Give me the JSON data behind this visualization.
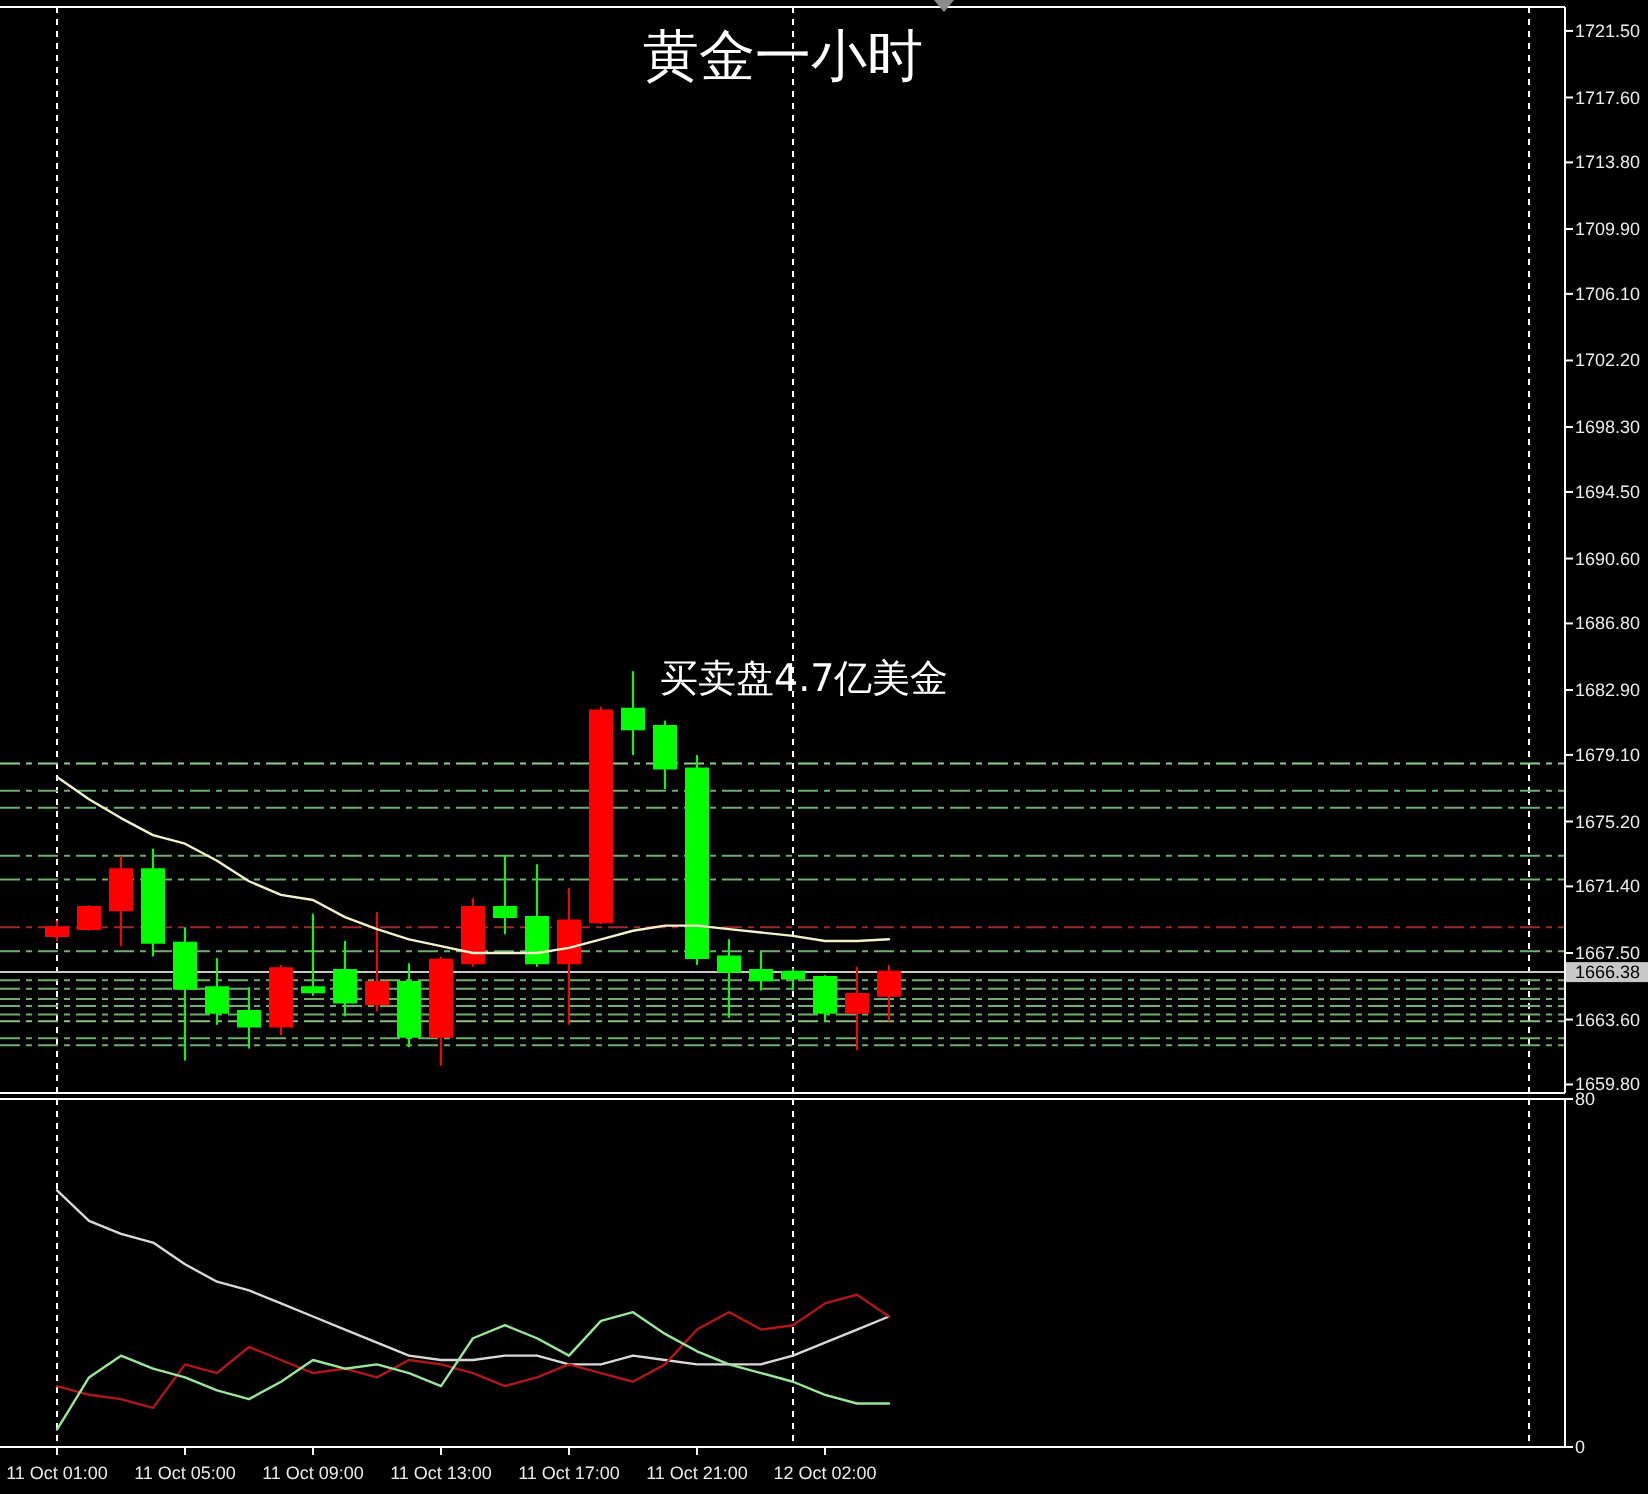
{
  "chart_data": [
    {
      "type": "candlestick",
      "title": "黄金一小时",
      "annotations": [
        "买卖盘4.7亿美金"
      ],
      "categories": [
        null,
        null,
        null,
        null,
        null,
        null,
        null,
        null,
        null,
        null,
        null,
        null,
        null,
        null,
        null,
        null,
        null,
        null,
        null,
        null,
        null,
        null,
        null,
        null,
        null,
        null,
        null
      ],
      "ohlc": [
        [
          1668.5,
          1669.4,
          1668.2,
          1669.0
        ],
        [
          1668.9,
          1670.3,
          1668.8,
          1670.2
        ],
        [
          1670.0,
          1673.2,
          1667.9,
          1672.4
        ],
        [
          1672.4,
          1673.6,
          1667.3,
          1668.1
        ],
        [
          1668.1,
          1669.0,
          1661.2,
          1665.4
        ],
        [
          1665.5,
          1667.2,
          1663.3,
          1664.0
        ],
        [
          1664.1,
          1665.5,
          1661.9,
          1663.2
        ],
        [
          1663.2,
          1666.8,
          1662.7,
          1666.6
        ],
        [
          1665.5,
          1669.8,
          1665.0,
          1665.2
        ],
        [
          1666.5,
          1668.2,
          1663.8,
          1664.6
        ],
        [
          1664.5,
          1669.9,
          1664.1,
          1665.8
        ],
        [
          1665.8,
          1666.9,
          1662.0,
          1662.6
        ],
        [
          1662.6,
          1667.3,
          1660.9,
          1667.1
        ],
        [
          1666.9,
          1670.7,
          1666.7,
          1670.2
        ],
        [
          1670.2,
          1673.2,
          1668.6,
          1669.6
        ],
        [
          1669.6,
          1672.7,
          1666.7,
          1666.9
        ],
        [
          1666.9,
          1671.3,
          1663.3,
          1669.4
        ],
        [
          1669.3,
          1681.9,
          1669.2,
          1681.7
        ],
        [
          1681.8,
          1684.0,
          1679.1,
          1680.6
        ],
        [
          1680.8,
          1681.1,
          1677.1,
          1678.3
        ],
        [
          1678.3,
          1679.1,
          1666.8,
          1667.2
        ],
        [
          1667.3,
          1668.3,
          1663.7,
          1666.4
        ],
        [
          1666.5,
          1667.6,
          1665.3,
          1665.9
        ],
        [
          1666.4,
          1666.6,
          1665.3,
          1666.0
        ],
        [
          1666.1,
          1666.2,
          1663.5,
          1664.0
        ],
        [
          1664.0,
          1666.7,
          1661.8,
          1665.1
        ],
        [
          1665.0,
          1666.8,
          1663.5,
          1666.4
        ]
      ],
      "colors": [
        "#ff0000",
        "#ff0000",
        "#ff0000",
        "#00ff00",
        "#00ff00",
        "#00ff00",
        "#00ff00",
        "#ff0000",
        "#00ff00",
        "#00ff00",
        "#ff0000",
        "#00ff00",
        "#ff0000",
        "#ff0000",
        "#00ff00",
        "#00ff00",
        "#ff0000",
        "#ff0000",
        "#00ff00",
        "#00ff00",
        "#00ff00",
        "#00ff00",
        "#00ff00",
        "#00ff00",
        "#00ff00",
        "#ff0000",
        "#ff0000"
      ],
      "series": [
        {
          "type": "line",
          "color": "#f2f2c8",
          "values": [
            1677.8,
            1676.5,
            1675.4,
            1674.4,
            1673.9,
            1672.9,
            1671.7,
            1670.9,
            1670.6,
            1669.6,
            1668.9,
            1668.3,
            1667.9,
            1667.5,
            1667.5,
            1667.5,
            1667.8,
            1668.3,
            1668.8,
            1669.1,
            1669.1,
            1668.9,
            1668.7,
            1668.5,
            1668.2,
            1668.2,
            1668.3
          ]
        }
      ],
      "ref_lines": [
        {
          "axis": "y",
          "value": 1678.6,
          "color": "#8fd08f",
          "line_style": "dashed"
        },
        {
          "axis": "y",
          "value": 1677.0,
          "color": "#6fae6f",
          "line_style": "dashed"
        },
        {
          "axis": "y",
          "value": 1676.0,
          "color": "#6fae6f",
          "line_style": "dashed"
        },
        {
          "axis": "y",
          "value": 1673.2,
          "color": "#6fae6f",
          "line_style": "dashed"
        },
        {
          "axis": "y",
          "value": 1671.8,
          "color": "#6fae6f",
          "line_style": "dashed"
        },
        {
          "axis": "y",
          "value": 1669.0,
          "color": "#a02828",
          "line_style": "dashed"
        },
        {
          "axis": "y",
          "value": 1667.6,
          "color": "#6fae6f",
          "line_style": "dashed"
        },
        {
          "axis": "y",
          "value": 1666.38,
          "label": "1666.38",
          "color": "#c8c8c8",
          "line_style": "solid"
        },
        {
          "axis": "y",
          "value": 1665.9,
          "color": "#6fae6f",
          "line_style": "dashed"
        },
        {
          "axis": "y",
          "value": 1665.4,
          "color": "#6fae6f",
          "line_style": "dashed"
        },
        {
          "axis": "y",
          "value": 1664.8,
          "color": "#6fae6f",
          "line_style": "dashed"
        },
        {
          "axis": "y",
          "value": 1664.4,
          "color": "#6fae6f",
          "line_style": "dashed"
        },
        {
          "axis": "y",
          "value": 1663.9,
          "color": "#6fae6f",
          "line_style": "dashed"
        },
        {
          "axis": "y",
          "value": 1663.5,
          "color": "#8fc07f",
          "line_style": "dashed"
        },
        {
          "axis": "y",
          "value": 1662.5,
          "color": "#6fae6f",
          "line_style": "dashed"
        },
        {
          "axis": "y",
          "value": 1662.1,
          "color": "#6fae6f",
          "line_style": "dashed"
        }
      ],
      "ylim": [
        1659.3,
        1722.9
      ],
      "yticks": [
        {
          "value": 1721.5,
          "label": "1721.50"
        },
        {
          "value": 1717.6,
          "label": "1717.60"
        },
        {
          "value": 1713.8,
          "label": "1713.80"
        },
        {
          "value": 1709.9,
          "label": "1709.90"
        },
        {
          "value": 1706.1,
          "label": "1706.10"
        },
        {
          "value": 1702.2,
          "label": "1702.20"
        },
        {
          "value": 1698.3,
          "label": "1698.30"
        },
        {
          "value": 1694.5,
          "label": "1694.50"
        },
        {
          "value": 1690.6,
          "label": "1690.60"
        },
        {
          "value": 1686.8,
          "label": "1686.80"
        },
        {
          "value": 1682.9,
          "label": "1682.90"
        },
        {
          "value": 1679.1,
          "label": "1679.10"
        },
        {
          "value": 1675.2,
          "label": "1675.20"
        },
        {
          "value": 1671.4,
          "label": "1671.40"
        },
        {
          "value": 1667.5,
          "label": "1667.50"
        },
        {
          "value": 1663.6,
          "label": "1663.60"
        },
        {
          "value": 1659.8,
          "label": "1659.80"
        }
      ]
    },
    {
      "type": "line",
      "categories": [
        "11 Oct 01:00",
        null,
        null,
        null,
        "11 Oct 05:00",
        null,
        null,
        null,
        "11 Oct 09:00",
        null,
        null,
        null,
        "11 Oct 13:00",
        null,
        null,
        null,
        "11 Oct 17:00",
        null,
        null,
        null,
        "11 Oct 21:00",
        null,
        null,
        null,
        "12 Oct 02:00",
        null,
        null
      ],
      "series": [
        {
          "color": "#d9d9d9",
          "values": [
            59,
            52,
            49,
            47,
            42,
            38,
            36,
            33,
            30,
            27,
            24,
            21,
            20,
            20,
            21,
            21,
            19,
            19,
            21,
            20,
            19,
            19,
            19,
            21,
            24,
            27,
            30
          ]
        },
        {
          "color": "#b01818",
          "values": [
            14,
            12,
            11,
            9,
            19,
            17,
            23,
            20,
            17,
            18,
            16,
            20,
            19,
            17,
            14,
            16,
            19,
            17,
            15,
            19,
            27,
            31,
            27,
            28,
            33,
            35,
            30
          ]
        },
        {
          "color": "#98e898",
          "values": [
            4,
            16,
            21,
            18,
            16,
            13,
            11,
            15,
            20,
            18,
            19,
            17,
            14,
            25,
            28,
            25,
            21,
            29,
            31,
            26,
            22,
            19,
            17,
            15,
            12,
            10,
            10
          ]
        }
      ],
      "ylim": [
        0,
        80
      ],
      "yticks": [
        0,
        80
      ]
    }
  ]
}
